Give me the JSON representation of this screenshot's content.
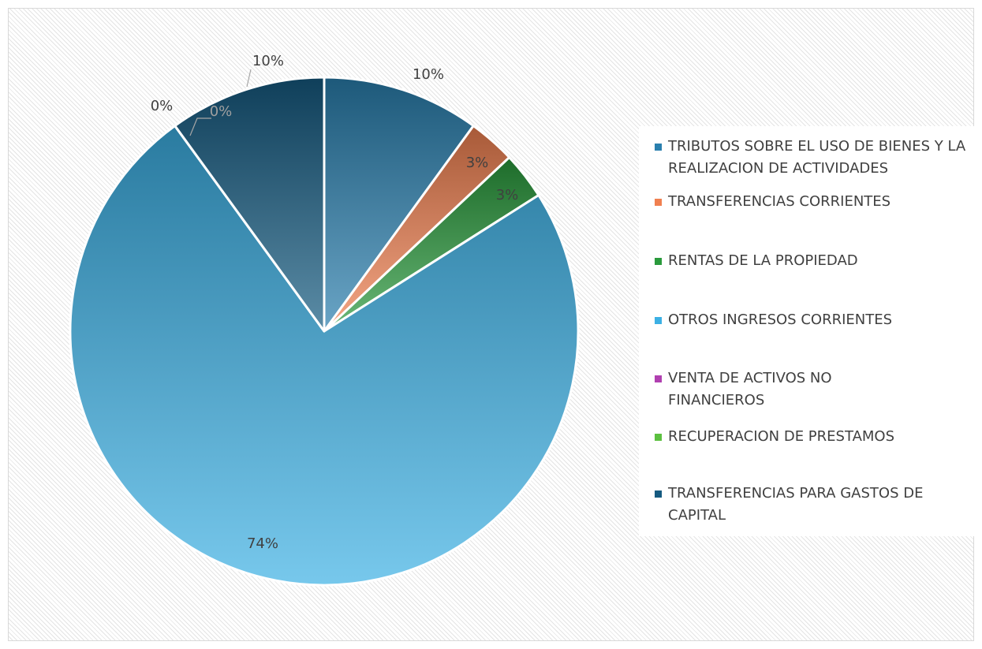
{
  "chart_data": {
    "type": "pie",
    "categories": [
      "TRIBUTOS SOBRE EL USO DE BIENES Y LA REALIZACION DE ACTIVIDADES",
      "TRANSFERENCIAS CORRIENTES",
      "RENTAS DE LA PROPIEDAD",
      "OTROS INGRESOS CORRIENTES",
      "VENTA DE ACTIVOS NO FINANCIEROS",
      "RECUPERACION DE PRESTAMOS",
      "TRANSFERENCIAS PARA GASTOS DE CAPITAL"
    ],
    "values": [
      10,
      3,
      3,
      74,
      0,
      0,
      10
    ],
    "value_labels": [
      "10%",
      "3%",
      "3%",
      "74%",
      "0%",
      "0%",
      "10%"
    ],
    "colors": [
      "#2a7fae",
      "#f08050",
      "#2a9a3c",
      "#3cb0e4",
      "#b040b0",
      "#5cc040",
      "#155a80"
    ],
    "legend": "right"
  }
}
